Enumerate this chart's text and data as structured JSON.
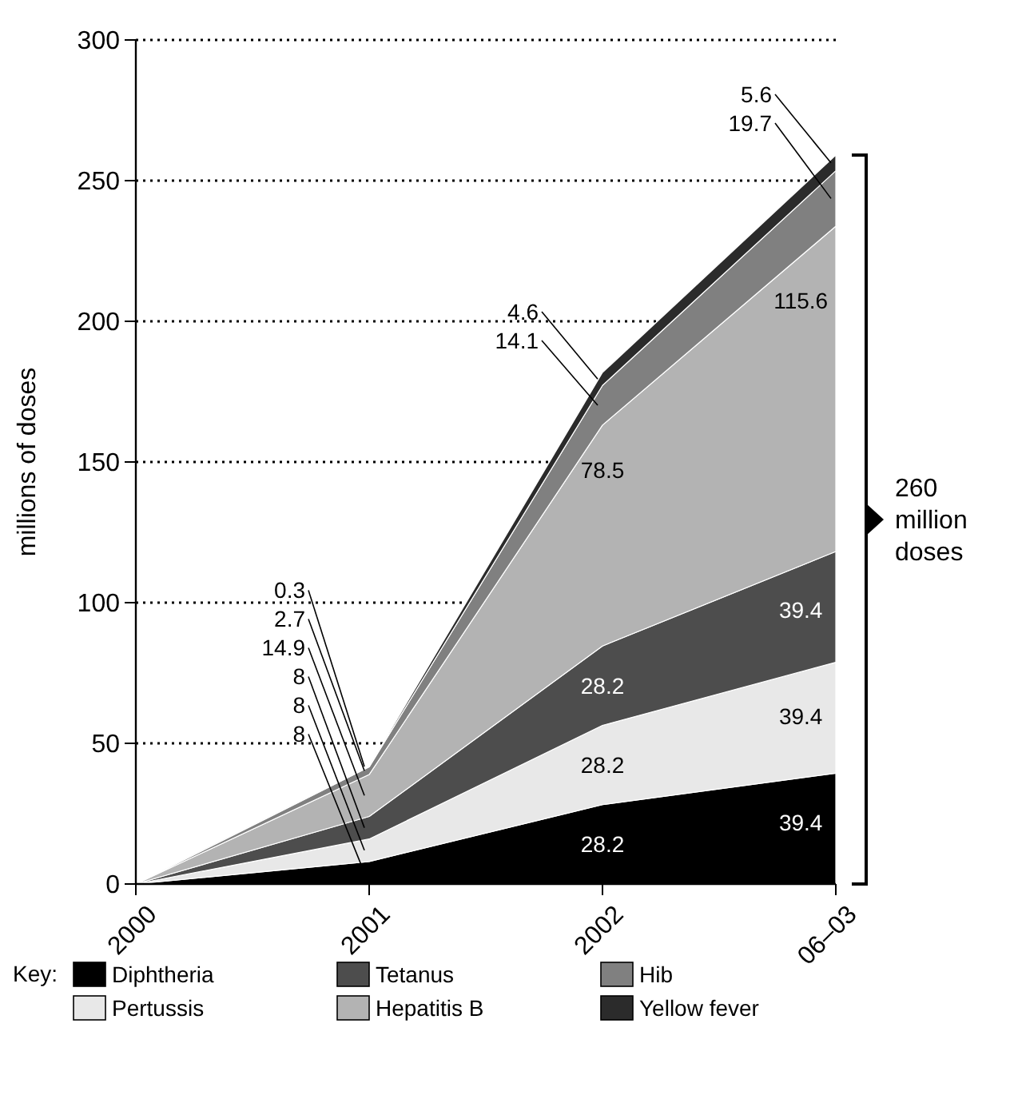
{
  "chart_data": {
    "type": "area",
    "stacked": true,
    "ylabel": "millions of doses",
    "categories": [
      "2000",
      "2001",
      "2002",
      "06–03"
    ],
    "ylim": [
      0,
      300
    ],
    "yticks": [
      0,
      50,
      100,
      150,
      200,
      250,
      300
    ],
    "grid": "y",
    "legend": "bottom",
    "legend_title": "Key:",
    "series": [
      {
        "name": "Diphtheria",
        "color": "#000000",
        "values": [
          0,
          8,
          28.2,
          39.4
        ],
        "value_labels": [
          null,
          "8",
          "28.2",
          "39.4"
        ]
      },
      {
        "name": "Pertussis",
        "color": "#e8e8e8",
        "values": [
          0,
          8,
          28.2,
          39.4
        ],
        "value_labels": [
          null,
          "8",
          "28.2",
          "39.4"
        ]
      },
      {
        "name": "Tetanus",
        "color": "#4d4d4d",
        "values": [
          0,
          8,
          28.2,
          39.4
        ],
        "value_labels": [
          null,
          "8",
          "28.2",
          "39.4"
        ]
      },
      {
        "name": "Hepatitis B",
        "color": "#b3b3b3",
        "values": [
          0,
          14.9,
          78.5,
          115.6
        ],
        "value_labels": [
          null,
          "14.9",
          "78.5",
          "115.6"
        ]
      },
      {
        "name": "Hib",
        "color": "#808080",
        "values": [
          0,
          2.7,
          14.1,
          19.7
        ],
        "value_labels": [
          null,
          "2.7",
          "14.1",
          "19.7"
        ]
      },
      {
        "name": "Yellow fever",
        "color": "#2b2b2b",
        "values": [
          0,
          0.3,
          4.6,
          5.6
        ],
        "value_labels": [
          null,
          "0.3",
          "4.6",
          "5.6"
        ]
      }
    ],
    "annotations": [
      "260 million doses"
    ]
  }
}
